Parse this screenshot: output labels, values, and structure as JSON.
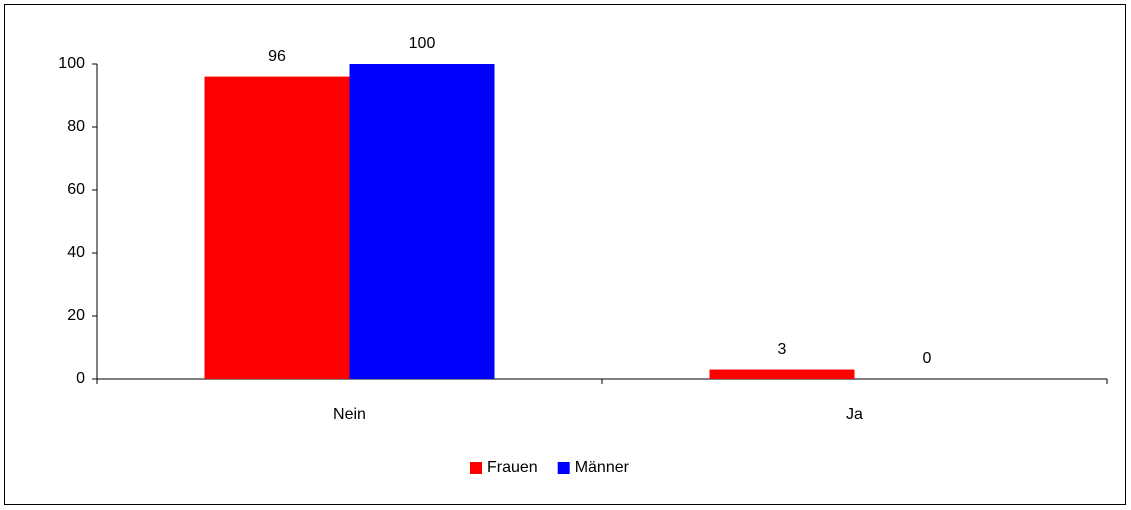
{
  "chart_data": {
    "type": "bar",
    "categories": [
      "Nein",
      "Ja"
    ],
    "series": [
      {
        "name": "Frauen",
        "color": "#ff0000",
        "values": [
          96,
          3
        ]
      },
      {
        "name": "Männer",
        "color": "#0000ff",
        "values": [
          100,
          0
        ]
      }
    ],
    "ylim": [
      0,
      100
    ],
    "yticks": [
      0,
      20,
      40,
      60,
      80,
      100
    ],
    "grid": false,
    "legend": "bottom"
  }
}
